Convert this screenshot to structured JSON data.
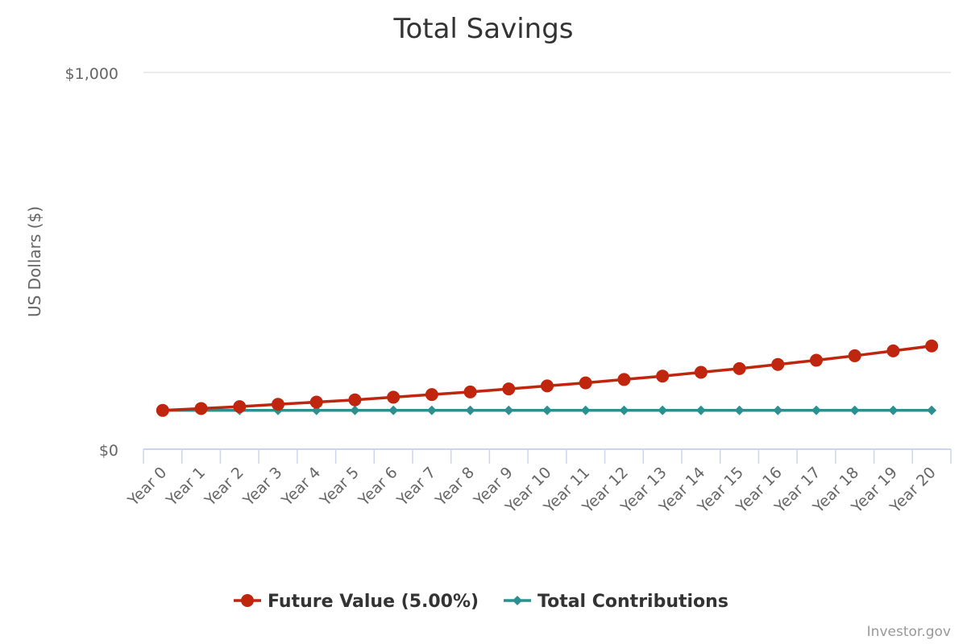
{
  "chart_data": {
    "type": "line",
    "title": "Total Savings",
    "ylabel": "US Dollars ($)",
    "xlabel": "",
    "ylim": [
      0,
      1000
    ],
    "y_ticks": [
      {
        "value": 0,
        "label": "$0"
      },
      {
        "value": 1000,
        "label": "$1,000"
      }
    ],
    "categories": [
      "Year 0",
      "Year 1",
      "Year 2",
      "Year 3",
      "Year 4",
      "Year 5",
      "Year 6",
      "Year 7",
      "Year 8",
      "Year 9",
      "Year 10",
      "Year 11",
      "Year 12",
      "Year 13",
      "Year 14",
      "Year 15",
      "Year 16",
      "Year 17",
      "Year 18",
      "Year 19",
      "Year 20"
    ],
    "series": [
      {
        "name": "Future Value (5.00%)",
        "color": "#c0250e",
        "marker": "circle",
        "values": [
          103,
          108,
          113,
          119,
          125,
          131,
          138,
          145,
          152,
          160,
          168,
          176,
          185,
          194,
          204,
          214,
          225,
          236,
          248,
          261,
          274
        ]
      },
      {
        "name": "Total Contributions",
        "color": "#2b908f",
        "marker": "diamond",
        "values": [
          103,
          103,
          103,
          103,
          103,
          103,
          103,
          103,
          103,
          103,
          103,
          103,
          103,
          103,
          103,
          103,
          103,
          103,
          103,
          103,
          103
        ]
      }
    ],
    "grid": true,
    "legend_position": "bottom-center",
    "credit": "Investor.gov"
  }
}
